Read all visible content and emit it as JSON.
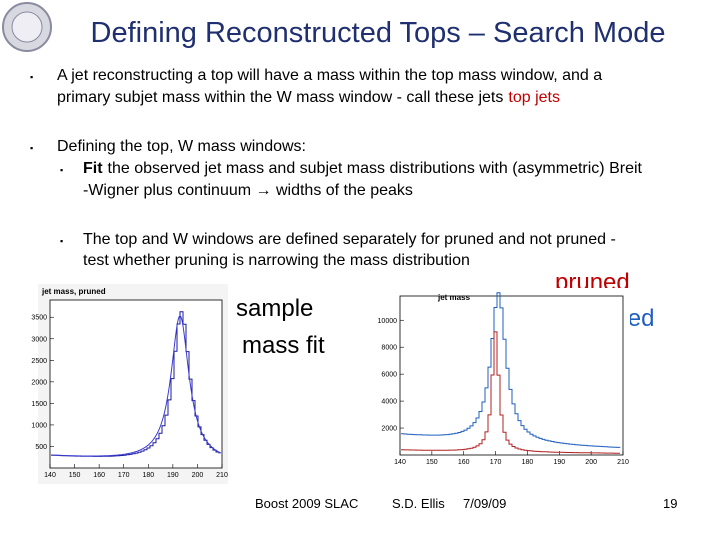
{
  "header": {
    "title": "Defining Reconstructed Tops – Search Mode"
  },
  "bullets": [
    {
      "lines": [
        "A jet reconstructing a top will have a mass within the top mass window, and a",
        "primary subjet mass within the W mass window - call these jets"
      ],
      "highlight": "top jets"
    },
    {
      "lines": [
        "Defining the top, W mass windows:"
      ],
      "sub": [
        {
          "bold": "Fit",
          "lines": [
            "the observed jet mass and subjet mass distributions with (asymmetric) Breit",
            "-Wigner plus continuum → widths of the peaks"
          ]
        },
        {
          "lines": [
            "The top and W windows are defined separately for pruned and not pruned -",
            "test whether pruning is narrowing the mass distribution"
          ]
        }
      ]
    }
  ],
  "annotations": {
    "sample_fit": [
      "sample",
      "mass fit"
    ],
    "pruned": "pruned",
    "unpruned": "unpruned"
  },
  "plots": [
    {
      "title": "jet mass, pruned",
      "xticks": [
        140,
        150,
        160,
        170,
        180,
        190,
        200,
        210
      ],
      "yticks": [
        500,
        1000,
        1500,
        2000,
        2500,
        3000,
        3500
      ]
    },
    {
      "title": "jet mass",
      "xticks": [
        140,
        150,
        160,
        170,
        180,
        190,
        200,
        210
      ],
      "yticks": [
        2000,
        4000,
        6000,
        8000,
        10000
      ]
    }
  ],
  "footer": {
    "event": "Boost 2009  SLAC",
    "author": "S.D. Ellis",
    "date": "7/09/09",
    "page": "19"
  }
}
